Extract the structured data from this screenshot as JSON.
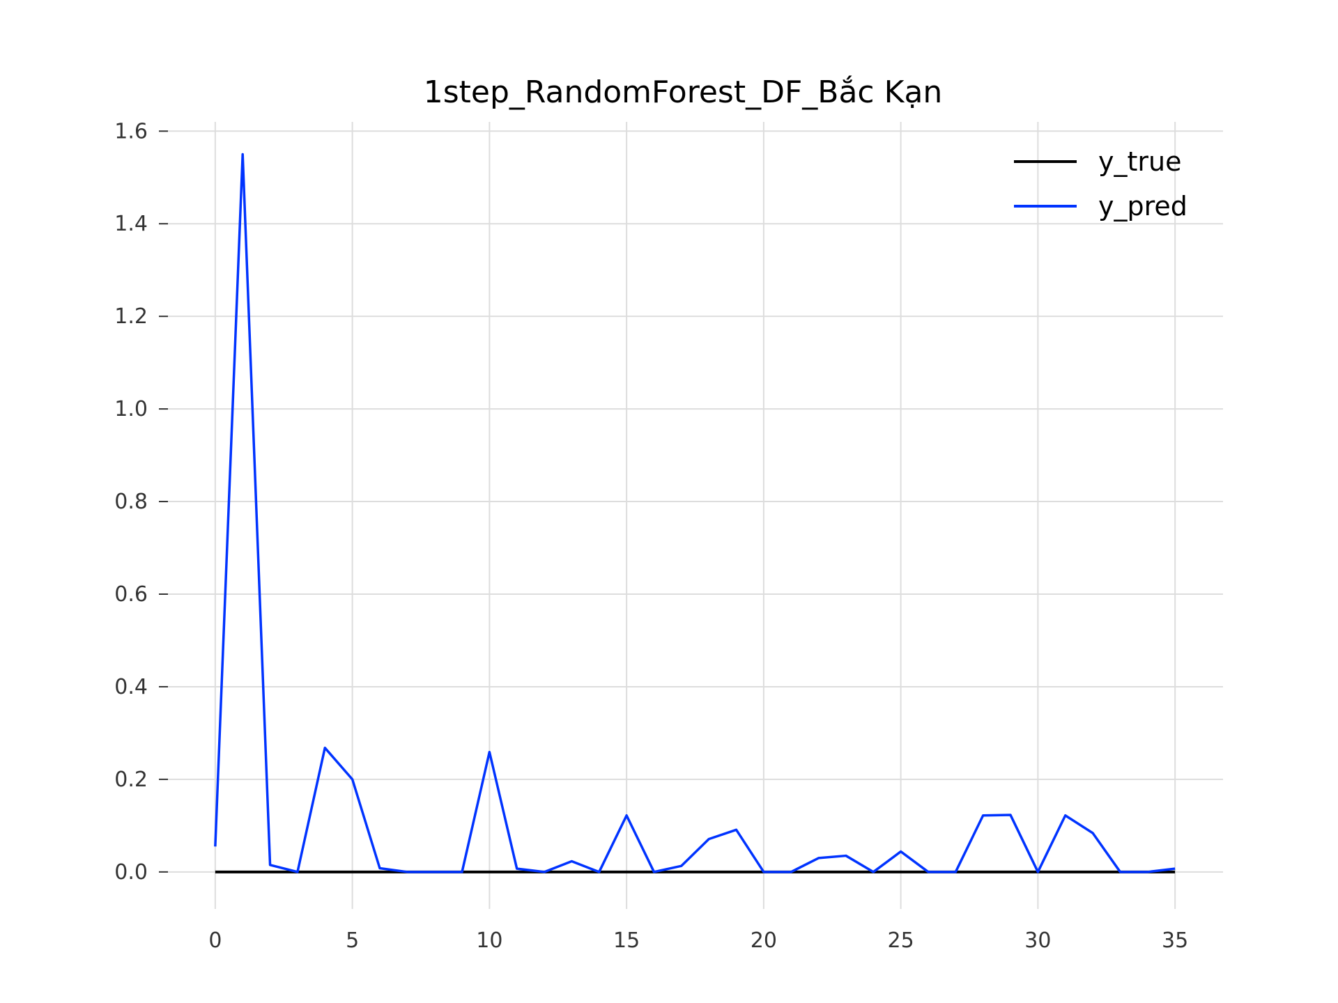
{
  "chart_data": {
    "type": "line",
    "title": "1step_RandomForest_DF_Bắc Kạn",
    "xlabel": "",
    "ylabel": "",
    "xlim": [
      -1.75,
      36.75
    ],
    "ylim": [
      -0.08,
      1.62
    ],
    "xticks": [
      0,
      5,
      10,
      15,
      20,
      25,
      30,
      35
    ],
    "yticks": [
      0.0,
      0.2,
      0.4,
      0.6,
      0.8,
      1.0,
      1.2,
      1.4,
      1.6
    ],
    "ytick_labels": [
      "0.0",
      "0.2",
      "0.4",
      "0.6",
      "0.8",
      "1.0",
      "1.2",
      "1.4",
      "1.6"
    ],
    "grid": true,
    "legend_position": "top-right",
    "x": [
      0,
      1,
      2,
      3,
      4,
      5,
      6,
      7,
      8,
      9,
      10,
      11,
      12,
      13,
      14,
      15,
      16,
      17,
      18,
      19,
      20,
      21,
      22,
      23,
      24,
      25,
      26,
      27,
      28,
      29,
      30,
      31,
      32,
      33,
      34,
      35
    ],
    "series": [
      {
        "name": "y_true",
        "color": "#000000",
        "values": [
          0,
          0,
          0,
          0,
          0,
          0,
          0,
          0,
          0,
          0,
          0,
          0,
          0,
          0,
          0,
          0,
          0,
          0,
          0,
          0,
          0,
          0,
          0,
          0,
          0,
          0,
          0,
          0,
          0,
          0,
          0,
          0,
          0,
          0,
          0,
          0
        ]
      },
      {
        "name": "y_pred",
        "color": "#0033ff",
        "values": [
          0.055,
          1.55,
          0.015,
          0.0,
          0.268,
          0.2,
          0.008,
          0.0,
          0.0,
          0.0,
          0.259,
          0.007,
          0.0,
          0.023,
          0.0,
          0.122,
          0.0,
          0.013,
          0.071,
          0.091,
          0.0,
          0.0,
          0.03,
          0.035,
          0.0,
          0.044,
          0.0,
          0.0,
          0.122,
          0.123,
          0.0,
          0.122,
          0.084,
          0.0,
          0.0,
          0.007
        ]
      }
    ]
  }
}
